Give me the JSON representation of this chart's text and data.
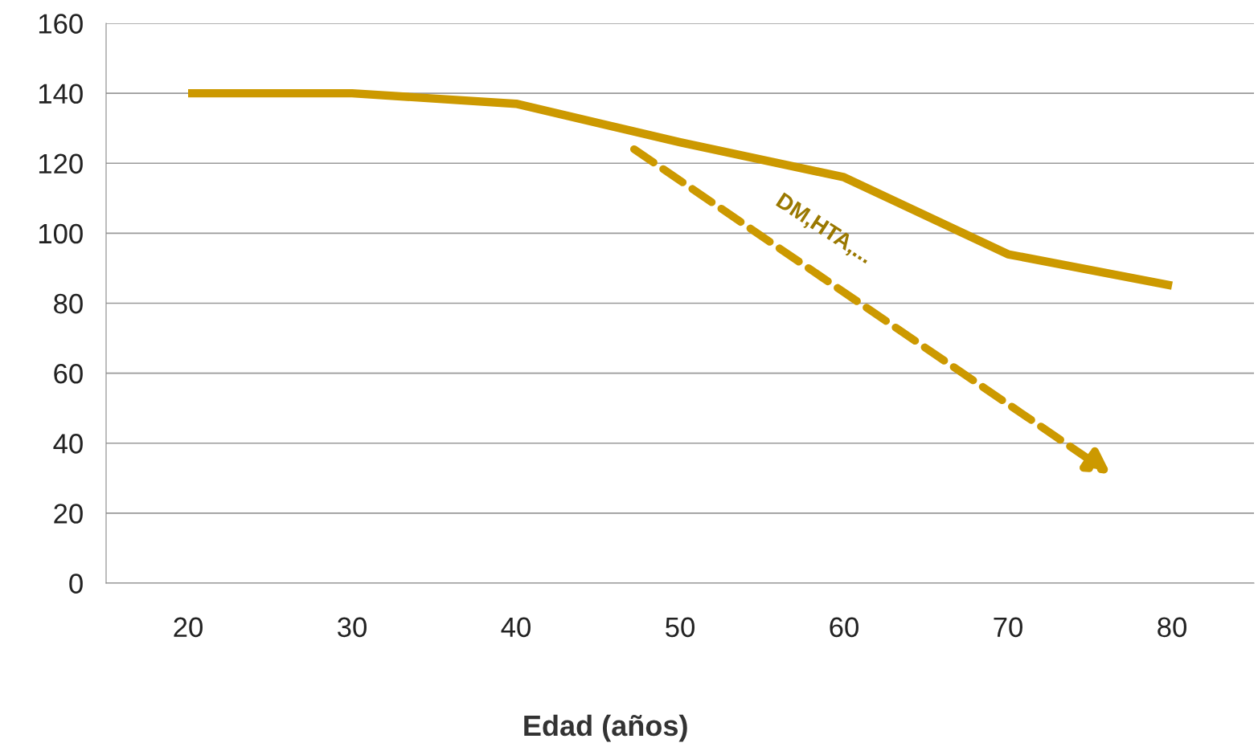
{
  "chart_data": {
    "type": "line",
    "categories": [
      "20",
      "30",
      "40",
      "50",
      "60",
      "70",
      "80"
    ],
    "series": [
      {
        "color": "#cc9900",
        "values": [
          140,
          140,
          137,
          126,
          116,
          94,
          85
        ]
      }
    ],
    "ylim": [
      0,
      160
    ],
    "yticks": [
      0,
      20,
      40,
      60,
      80,
      100,
      120,
      140,
      160
    ],
    "grid": "y",
    "line_style": "solid",
    "xlabel": "Edad (años)",
    "annotations": [
      "DM,HTA,..."
    ]
  }
}
